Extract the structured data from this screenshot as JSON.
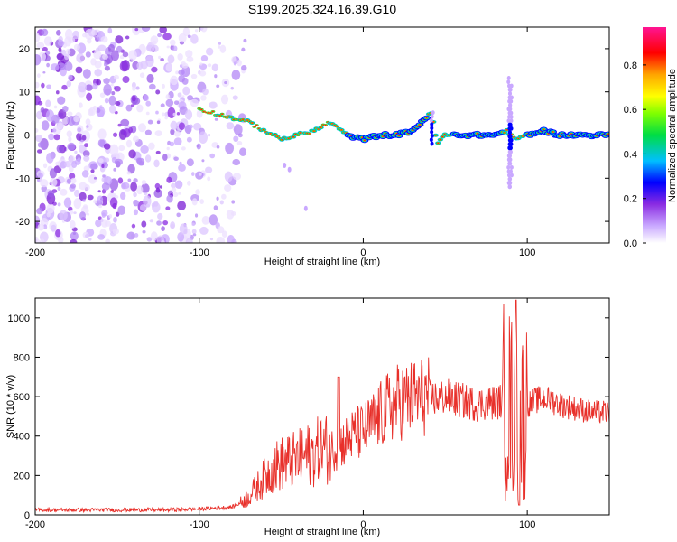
{
  "title": "S199.2025.324.16.39.G10",
  "chart_data": [
    {
      "type": "heatmap",
      "xlabel": "Height of straight line (km)",
      "ylabel": "Frequency (Hz)",
      "xlim": [
        -200,
        150
      ],
      "ylim": [
        -25,
        25
      ],
      "xticks": [
        -200,
        -100,
        0,
        100
      ],
      "yticks": [
        -20,
        -10,
        0,
        10,
        20
      ],
      "colorbar": {
        "label": "Normalized spectral amplitude",
        "range": [
          0,
          0.97
        ],
        "ticks": [
          "0.0",
          "0.2",
          "0.4",
          "0.6",
          "0.8"
        ],
        "colors": [
          "#e6d6ff",
          "#8a2be2",
          "#0000ff",
          "#00bfff",
          "#00ff7f",
          "#7fff00",
          "#ffff00",
          "#ffa500",
          "#ff0000",
          "#ff1493"
        ]
      },
      "ridge": {
        "x": [
          -100,
          -90,
          -80,
          -70,
          -60,
          -50,
          -40,
          -30,
          -20,
          -10,
          0,
          10,
          20,
          30,
          38,
          42,
          45,
          50,
          60,
          70,
          80,
          88,
          92,
          100,
          110,
          120,
          130,
          140,
          150
        ],
        "freq": [
          6,
          5,
          4,
          3,
          1,
          -1,
          0,
          1,
          3,
          0,
          -1,
          0,
          0,
          1,
          4,
          5,
          -2,
          0,
          0,
          0,
          0,
          1,
          -1,
          0,
          1,
          0,
          0,
          0,
          0
        ]
      }
    },
    {
      "type": "line",
      "xlabel": "Height of straight line (km)",
      "ylabel": "SNR (10 * v/v)",
      "xlim": [
        -200,
        150
      ],
      "ylim": [
        0,
        1100
      ],
      "xticks": [
        -200,
        -100,
        0,
        100
      ],
      "yticks": [
        0,
        200,
        400,
        600,
        800,
        1000
      ],
      "series": [
        {
          "name": "SNR",
          "color": "#e8302a",
          "x": [
            -200,
            -180,
            -160,
            -140,
            -120,
            -100,
            -90,
            -80,
            -75,
            -70,
            -65,
            -60,
            -55,
            -50,
            -45,
            -40,
            -35,
            -30,
            -25,
            -20,
            -15,
            -10,
            -5,
            0,
            5,
            10,
            15,
            20,
            25,
            30,
            35,
            40,
            45,
            50,
            55,
            60,
            65,
            70,
            75,
            80,
            85,
            90,
            93,
            95,
            97,
            100,
            105,
            110,
            115,
            120,
            130,
            140,
            150
          ],
          "values": [
            25,
            25,
            25,
            25,
            25,
            30,
            35,
            40,
            60,
            90,
            140,
            190,
            240,
            260,
            270,
            280,
            300,
            310,
            340,
            330,
            350,
            380,
            410,
            420,
            460,
            500,
            540,
            570,
            580,
            590,
            600,
            600,
            590,
            600,
            590,
            580,
            570,
            560,
            570,
            570,
            580,
            560,
            500,
            450,
            500,
            560,
            580,
            590,
            580,
            560,
            540,
            520,
            520
          ]
        }
      ]
    }
  ]
}
